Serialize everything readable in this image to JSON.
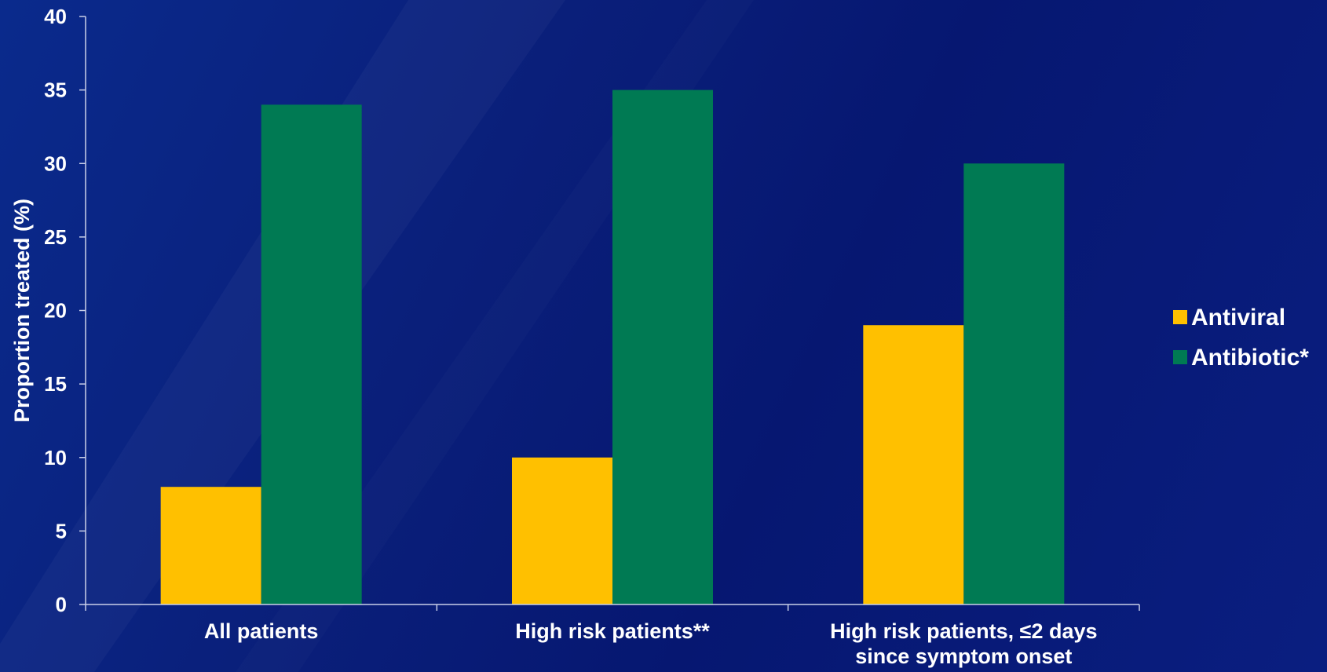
{
  "chart_data": {
    "type": "bar",
    "title": "",
    "xlabel": "",
    "ylabel": "Proportion treated (%)",
    "ylim": [
      0,
      40
    ],
    "yticks": [
      0,
      5,
      10,
      15,
      20,
      25,
      30,
      35,
      40
    ],
    "categories": [
      [
        "All patients"
      ],
      [
        "High risk patients**"
      ],
      [
        "High risk patients, ≤2 days",
        "since symptom onset"
      ]
    ],
    "series": [
      {
        "name": "Antiviral",
        "color": "#FFC000",
        "values": [
          8,
          10,
          19
        ]
      },
      {
        "name": "Antibiotic*",
        "color": "#007A53",
        "values": [
          34,
          35,
          30
        ]
      }
    ],
    "grid": false,
    "legend_position": "right"
  }
}
